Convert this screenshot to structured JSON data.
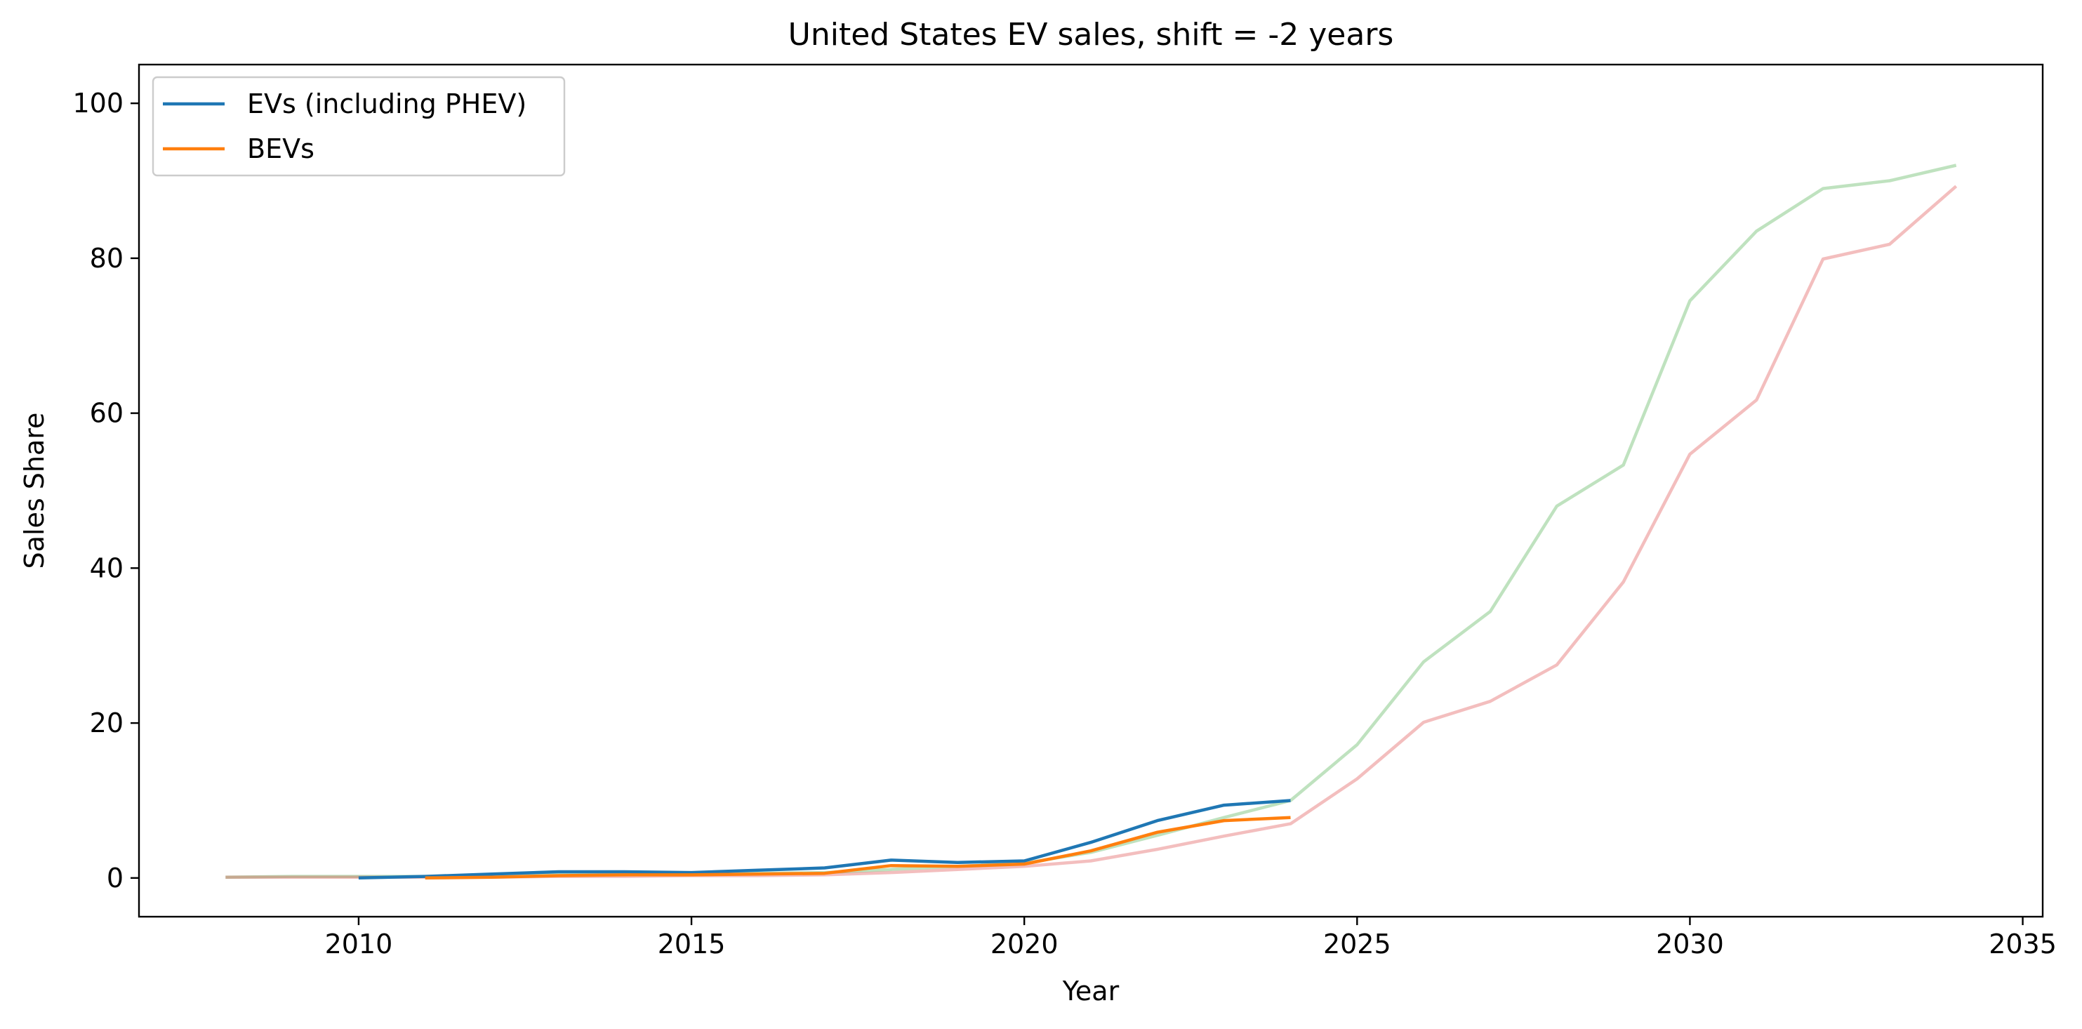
{
  "chart_data": {
    "type": "line",
    "title": "United States EV sales, shift = -2 years",
    "xlabel": "Year",
    "ylabel": "Sales Share",
    "xlim": [
      2006.7,
      2035.3
    ],
    "ylim": [
      -5,
      105
    ],
    "xticks": [
      2010,
      2015,
      2020,
      2025,
      2030,
      2035
    ],
    "yticks": [
      0,
      20,
      40,
      60,
      80,
      100
    ],
    "grid": false,
    "legend_position": "upper-left",
    "series": [
      {
        "name": "EVs (including PHEV)",
        "color": "#1f77b4",
        "opacity": 1,
        "in_legend": true,
        "x": [
          2010,
          2011,
          2012,
          2013,
          2014,
          2015,
          2016,
          2017,
          2018,
          2019,
          2020,
          2021,
          2022,
          2023,
          2024
        ],
        "y": [
          0.0,
          0.2,
          0.5,
          0.8,
          0.8,
          0.7,
          1.0,
          1.3,
          2.3,
          2.0,
          2.2,
          4.6,
          7.4,
          9.4,
          10.0
        ]
      },
      {
        "name": "BEVs",
        "color": "#ff7f0e",
        "opacity": 1,
        "in_legend": true,
        "x": [
          2011,
          2012,
          2013,
          2014,
          2015,
          2016,
          2017,
          2018,
          2019,
          2020,
          2021,
          2022,
          2023,
          2024
        ],
        "y": [
          0.0,
          0.1,
          0.3,
          0.4,
          0.4,
          0.5,
          0.6,
          1.6,
          1.5,
          1.8,
          3.5,
          5.9,
          7.4,
          7.8
        ]
      },
      {
        "color": "#2ca02c",
        "opacity": 0.3,
        "in_legend": false,
        "x": [
          2008,
          2009,
          2010,
          2011,
          2012,
          2013,
          2014,
          2015,
          2016,
          2017,
          2018,
          2019,
          2020,
          2021,
          2022,
          2023,
          2024,
          2025,
          2026,
          2027,
          2028,
          2029,
          2030,
          2031,
          2032,
          2033,
          2034
        ],
        "y": [
          0.1,
          0.2,
          0.2,
          0.2,
          0.3,
          0.4,
          0.4,
          0.5,
          0.6,
          0.7,
          1.1,
          1.5,
          1.9,
          3.3,
          5.5,
          7.8,
          10.0,
          17.2,
          27.9,
          34.4,
          48.0,
          53.3,
          74.5,
          83.5,
          89.0,
          90.0,
          92.0
        ]
      },
      {
        "color": "#d62728",
        "opacity": 0.3,
        "in_legend": false,
        "x": [
          2008,
          2009,
          2010,
          2011,
          2012,
          2013,
          2014,
          2015,
          2016,
          2017,
          2018,
          2019,
          2020,
          2021,
          2022,
          2023,
          2024,
          2025,
          2026,
          2027,
          2028,
          2029,
          2030,
          2031,
          2032,
          2033,
          2034
        ],
        "y": [
          0.1,
          0.1,
          0.1,
          0.1,
          0.1,
          0.2,
          0.2,
          0.3,
          0.3,
          0.4,
          0.7,
          1.1,
          1.5,
          2.2,
          3.7,
          5.4,
          7.0,
          12.8,
          20.1,
          22.8,
          27.5,
          38.2,
          54.7,
          61.7,
          79.9,
          81.8,
          89.3
        ]
      }
    ]
  }
}
